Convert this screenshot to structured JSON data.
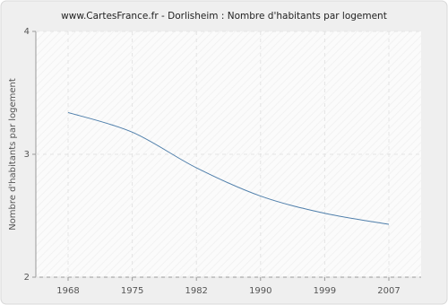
{
  "chart_data": {
    "type": "line",
    "title": "www.CartesFrance.fr - Dorlisheim : Nombre d'habitants par logement",
    "y_label": "Nombre d'habitants par logement",
    "categories": [
      "1968",
      "1975",
      "1982",
      "1990",
      "1999",
      "2007"
    ],
    "series": [
      {
        "name": "Nombre d'habitants par logement",
        "color": "#4f7fab",
        "values": [
          3.34,
          3.18,
          2.89,
          2.66,
          2.52,
          2.43
        ]
      }
    ],
    "ylim": [
      2,
      4
    ],
    "yticks": [
      2,
      3,
      4
    ],
    "grid": true
  }
}
